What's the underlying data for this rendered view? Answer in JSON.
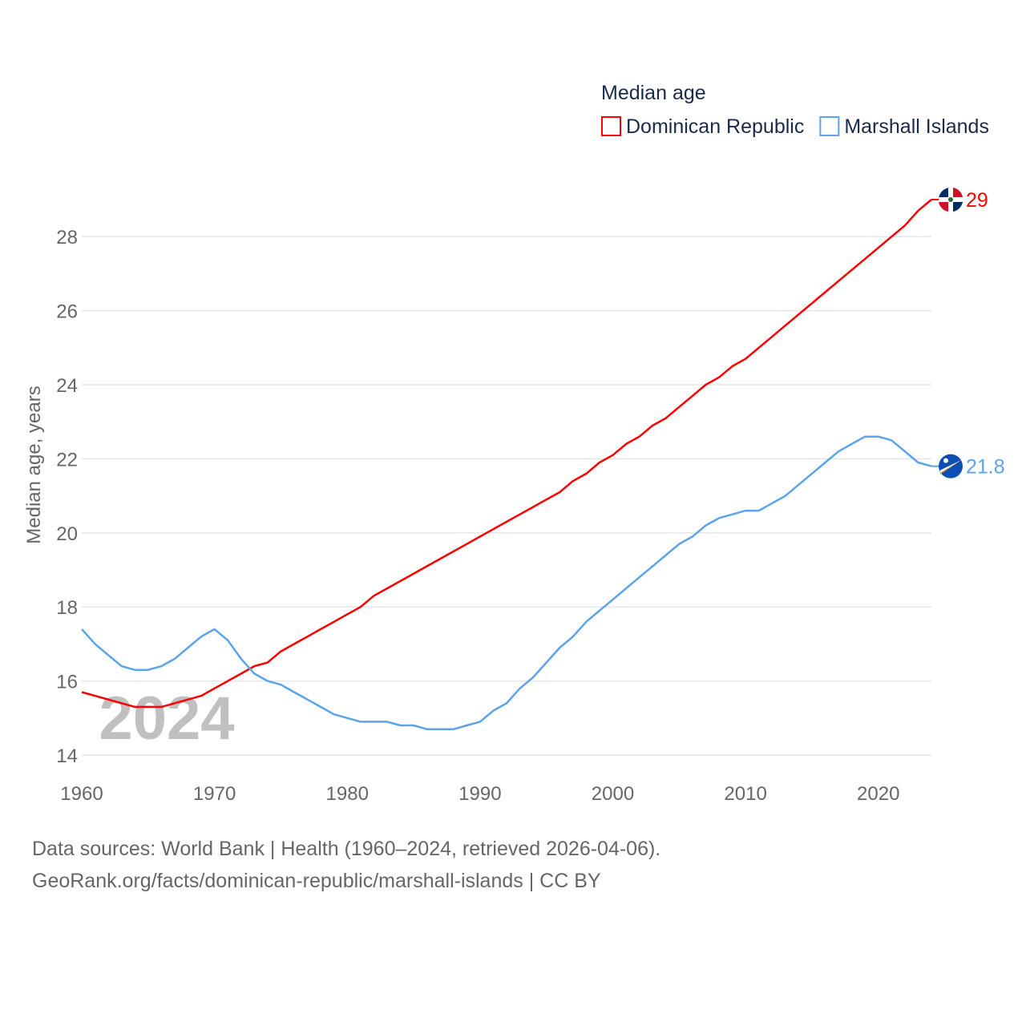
{
  "chart_data": {
    "type": "line",
    "title": "Median age",
    "ylabel": "Median age, years",
    "xlabel": "",
    "xlim": [
      1960,
      2024
    ],
    "ylim": [
      14,
      29.5
    ],
    "xticks": [
      1960,
      1970,
      1980,
      1990,
      2000,
      2010,
      2020
    ],
    "yticks": [
      14,
      16,
      18,
      20,
      22,
      24,
      26,
      28
    ],
    "grid": true,
    "legend_position": "top-right",
    "watermark_year": "2024",
    "x_start": 1960,
    "series": [
      {
        "name": "Dominican Republic",
        "color": "#ff0000",
        "end_label": "29",
        "flag": "dominican-republic-flag",
        "values": [
          15.7,
          15.6,
          15.5,
          15.4,
          15.3,
          15.3,
          15.3,
          15.4,
          15.5,
          15.6,
          15.8,
          16.0,
          16.2,
          16.4,
          16.5,
          16.8,
          17.0,
          17.2,
          17.4,
          17.6,
          17.8,
          18.0,
          18.3,
          18.5,
          18.7,
          18.9,
          19.1,
          19.3,
          19.5,
          19.7,
          19.9,
          20.1,
          20.3,
          20.5,
          20.7,
          20.9,
          21.1,
          21.4,
          21.6,
          21.9,
          22.1,
          22.4,
          22.6,
          22.9,
          23.1,
          23.4,
          23.7,
          24.0,
          24.2,
          24.5,
          24.7,
          25.0,
          25.3,
          25.6,
          25.9,
          26.2,
          26.5,
          26.8,
          27.1,
          27.4,
          27.7,
          28.0,
          28.3,
          28.7,
          29.0
        ]
      },
      {
        "name": "Marshall Islands",
        "color": "#5ba4ec",
        "end_label": "21.8",
        "flag": "marshall-islands-flag",
        "values": [
          17.4,
          17.0,
          16.7,
          16.4,
          16.3,
          16.3,
          16.4,
          16.6,
          16.9,
          17.2,
          17.4,
          17.1,
          16.6,
          16.2,
          16.0,
          15.9,
          15.7,
          15.5,
          15.3,
          15.1,
          15.0,
          14.9,
          14.9,
          14.9,
          14.8,
          14.8,
          14.7,
          14.7,
          14.7,
          14.8,
          14.9,
          15.2,
          15.4,
          15.8,
          16.1,
          16.5,
          16.9,
          17.2,
          17.6,
          17.9,
          18.2,
          18.5,
          18.8,
          19.1,
          19.4,
          19.7,
          19.9,
          20.2,
          20.4,
          20.5,
          20.6,
          20.6,
          20.8,
          21.0,
          21.3,
          21.6,
          21.9,
          22.2,
          22.4,
          22.6,
          22.6,
          22.5,
          22.2,
          21.9,
          21.8
        ]
      }
    ]
  },
  "footer": {
    "line1": "Data sources: World Bank | Health (1960–2024, retrieved 2026-04-06).",
    "line2": "GeoRank.org/facts/dominican-republic/marshall-islands | CC BY"
  }
}
